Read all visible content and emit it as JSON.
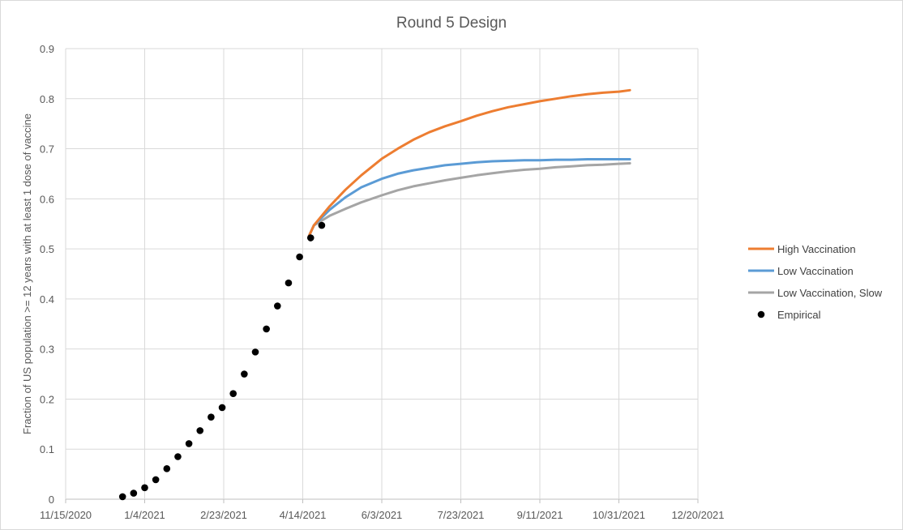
{
  "chart_data": {
    "type": "line",
    "title": "Round 5 Design",
    "ylabel": "Fraction of US population >= 12 years with at least 1 dose of vaccine",
    "xlabel": "",
    "ylim": [
      0,
      0.9
    ],
    "yticks": [
      "0",
      "0.1",
      "0.2",
      "0.3",
      "0.4",
      "0.5",
      "0.6",
      "0.7",
      "0.8",
      "0.9"
    ],
    "xlim": [
      "2020-11-15",
      "2021-12-20"
    ],
    "xticks": [
      {
        "date": "2020-11-15",
        "label": "11/15/2020"
      },
      {
        "date": "2021-01-04",
        "label": "1/4/2021"
      },
      {
        "date": "2021-02-23",
        "label": "2/23/2021"
      },
      {
        "date": "2021-04-14",
        "label": "4/14/2021"
      },
      {
        "date": "2021-06-03",
        "label": "6/3/2021"
      },
      {
        "date": "2021-07-23",
        "label": "7/23/2021"
      },
      {
        "date": "2021-09-11",
        "label": "9/11/2021"
      },
      {
        "date": "2021-10-31",
        "label": "10/31/2021"
      },
      {
        "date": "2021-12-20",
        "label": "12/20/2021"
      }
    ],
    "grid": true,
    "legend_position": "right",
    "series": [
      {
        "name": "High Vaccination",
        "kind": "line",
        "color": "#ED7D31",
        "points": [
          [
            "2021-04-18",
            0.526
          ],
          [
            "2021-04-21",
            0.547
          ],
          [
            "2021-05-01",
            0.585
          ],
          [
            "2021-05-11",
            0.618
          ],
          [
            "2021-05-21",
            0.647
          ],
          [
            "2021-06-03",
            0.68
          ],
          [
            "2021-06-13",
            0.7
          ],
          [
            "2021-06-23",
            0.718
          ],
          [
            "2021-07-03",
            0.733
          ],
          [
            "2021-07-13",
            0.745
          ],
          [
            "2021-07-23",
            0.755
          ],
          [
            "2021-08-02",
            0.766
          ],
          [
            "2021-08-12",
            0.775
          ],
          [
            "2021-08-22",
            0.783
          ],
          [
            "2021-09-01",
            0.789
          ],
          [
            "2021-09-11",
            0.795
          ],
          [
            "2021-09-21",
            0.8
          ],
          [
            "2021-10-01",
            0.805
          ],
          [
            "2021-10-11",
            0.809
          ],
          [
            "2021-10-21",
            0.812
          ],
          [
            "2021-10-31",
            0.814
          ],
          [
            "2021-11-07",
            0.817
          ]
        ]
      },
      {
        "name": "Low Vaccination",
        "kind": "line",
        "color": "#5B9BD5",
        "points": [
          [
            "2021-04-18",
            0.526
          ],
          [
            "2021-04-21",
            0.547
          ],
          [
            "2021-05-01",
            0.578
          ],
          [
            "2021-05-11",
            0.603
          ],
          [
            "2021-05-21",
            0.623
          ],
          [
            "2021-06-03",
            0.64
          ],
          [
            "2021-06-13",
            0.65
          ],
          [
            "2021-06-23",
            0.657
          ],
          [
            "2021-07-03",
            0.662
          ],
          [
            "2021-07-13",
            0.667
          ],
          [
            "2021-07-23",
            0.67
          ],
          [
            "2021-08-02",
            0.673
          ],
          [
            "2021-08-12",
            0.675
          ],
          [
            "2021-08-22",
            0.676
          ],
          [
            "2021-09-01",
            0.677
          ],
          [
            "2021-09-11",
            0.677
          ],
          [
            "2021-09-21",
            0.678
          ],
          [
            "2021-10-01",
            0.678
          ],
          [
            "2021-10-11",
            0.679
          ],
          [
            "2021-10-21",
            0.679
          ],
          [
            "2021-10-31",
            0.679
          ],
          [
            "2021-11-07",
            0.679
          ]
        ]
      },
      {
        "name": "Low Vaccination, Slow",
        "kind": "line",
        "color": "#A5A5A5",
        "points": [
          [
            "2021-04-18",
            0.526
          ],
          [
            "2021-04-21",
            0.547
          ],
          [
            "2021-05-01",
            0.566
          ],
          [
            "2021-05-11",
            0.58
          ],
          [
            "2021-05-21",
            0.593
          ],
          [
            "2021-06-03",
            0.607
          ],
          [
            "2021-06-13",
            0.617
          ],
          [
            "2021-06-23",
            0.625
          ],
          [
            "2021-07-03",
            0.631
          ],
          [
            "2021-07-13",
            0.637
          ],
          [
            "2021-07-23",
            0.642
          ],
          [
            "2021-08-02",
            0.647
          ],
          [
            "2021-08-12",
            0.651
          ],
          [
            "2021-08-22",
            0.655
          ],
          [
            "2021-09-01",
            0.658
          ],
          [
            "2021-09-11",
            0.66
          ],
          [
            "2021-09-21",
            0.663
          ],
          [
            "2021-10-01",
            0.665
          ],
          [
            "2021-10-11",
            0.667
          ],
          [
            "2021-10-21",
            0.668
          ],
          [
            "2021-10-31",
            0.67
          ],
          [
            "2021-11-07",
            0.671
          ]
        ]
      },
      {
        "name": "Empirical",
        "kind": "scatter",
        "color": "#000000",
        "points": [
          [
            "2020-12-21",
            0.005
          ],
          [
            "2020-12-28",
            0.012
          ],
          [
            "2021-01-04",
            0.023
          ],
          [
            "2021-01-11",
            0.039
          ],
          [
            "2021-01-18",
            0.061
          ],
          [
            "2021-01-25",
            0.085
          ],
          [
            "2021-02-01",
            0.111
          ],
          [
            "2021-02-08",
            0.137
          ],
          [
            "2021-02-15",
            0.164
          ],
          [
            "2021-02-22",
            0.183
          ],
          [
            "2021-03-01",
            0.211
          ],
          [
            "2021-03-08",
            0.25
          ],
          [
            "2021-03-15",
            0.294
          ],
          [
            "2021-03-22",
            0.34
          ],
          [
            "2021-03-29",
            0.386
          ],
          [
            "2021-04-05",
            0.432
          ],
          [
            "2021-04-12",
            0.484
          ],
          [
            "2021-04-19",
            0.522
          ],
          [
            "2021-04-26",
            0.547
          ]
        ]
      }
    ]
  }
}
